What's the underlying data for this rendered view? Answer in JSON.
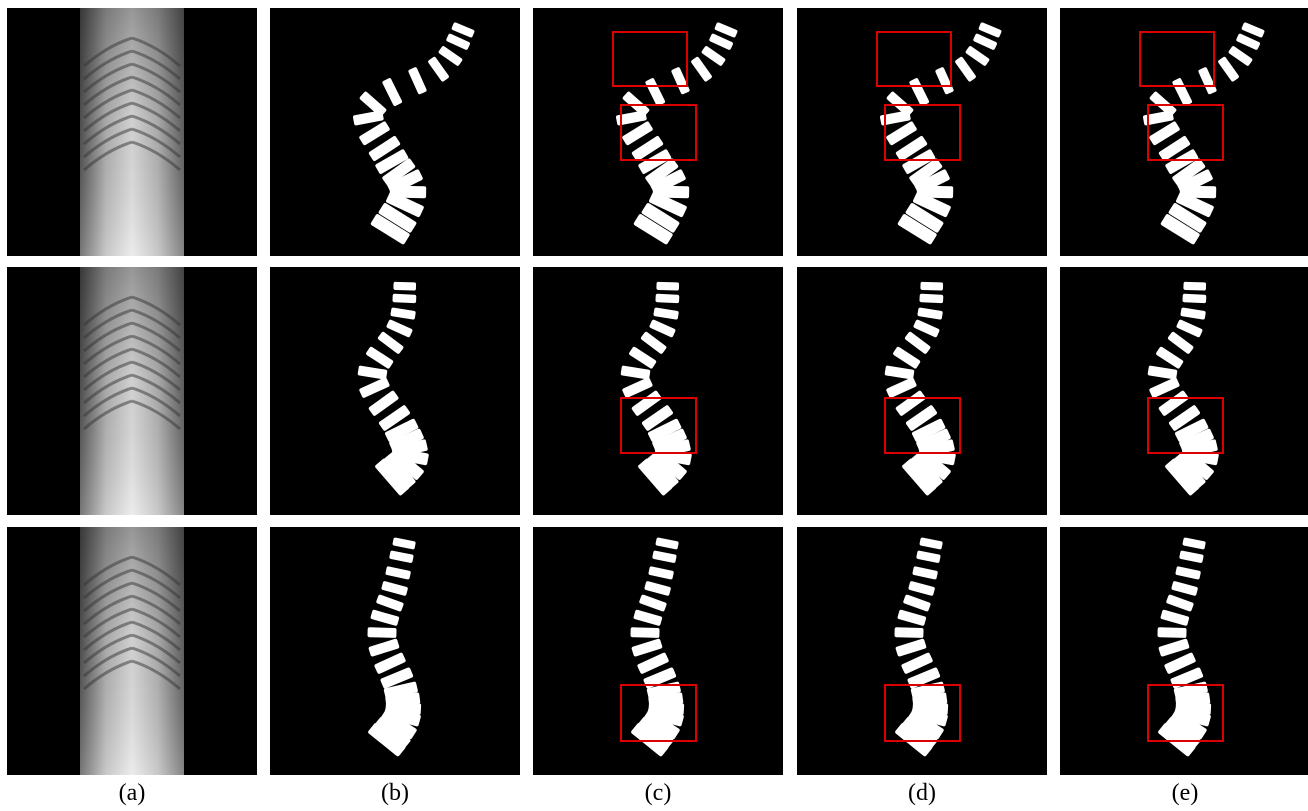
{
  "column_labels": [
    "(a)",
    "(b)",
    "(c)",
    "(d)",
    "(e)"
  ]
}
